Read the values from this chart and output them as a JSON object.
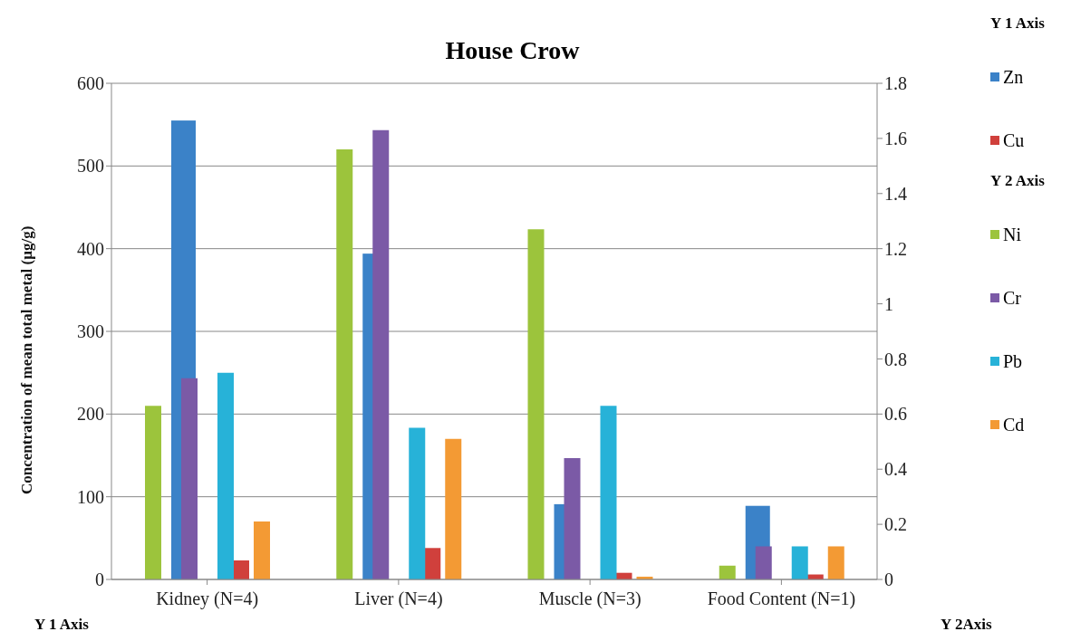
{
  "chart_data": {
    "type": "bar",
    "title": "House Crow",
    "ylabel": "Concentration of mean total metal (µg/g)",
    "categories": [
      "Kidney (N=4)",
      "Liver (N=4)",
      "Muscle (N=3)",
      "Food Content (N=1)"
    ],
    "series": [
      {
        "name": "Zn",
        "color": "#3b82c8",
        "axis": "y",
        "values": [
          555,
          394,
          91,
          89
        ]
      },
      {
        "name": "Cu",
        "color": "#d0403c",
        "axis": "y",
        "values": [
          23,
          38,
          8,
          6
        ]
      },
      {
        "name": "Ni",
        "color": "#9cc43c",
        "axis": "y2",
        "values": [
          0.63,
          1.56,
          1.27,
          0.05
        ]
      },
      {
        "name": "Cr",
        "color": "#7b5aa6",
        "axis": "y2",
        "values": [
          0.73,
          1.63,
          0.44,
          0.12
        ]
      },
      {
        "name": "Pb",
        "color": "#27b2d8",
        "axis": "y2",
        "values": [
          0.75,
          0.55,
          0.63,
          0.12
        ]
      },
      {
        "name": "Cd",
        "color": "#f39a34",
        "axis": "y2",
        "values": [
          0.21,
          0.51,
          0.01,
          0.12
        ]
      }
    ],
    "ylim": [
      0,
      600
    ],
    "yticks": [
      0,
      100,
      200,
      300,
      400,
      500,
      600
    ],
    "y2lim": [
      0,
      1.8
    ],
    "y2ticks": [
      0,
      0.2,
      0.4,
      0.6,
      0.8,
      1,
      1.2,
      1.4,
      1.6,
      1.8
    ],
    "grid": "y",
    "legend": "right",
    "annotations": [
      "Y 1 Axis",
      "Y 2 Axis",
      "Y 1 Axis",
      "Y 2Axis"
    ]
  }
}
